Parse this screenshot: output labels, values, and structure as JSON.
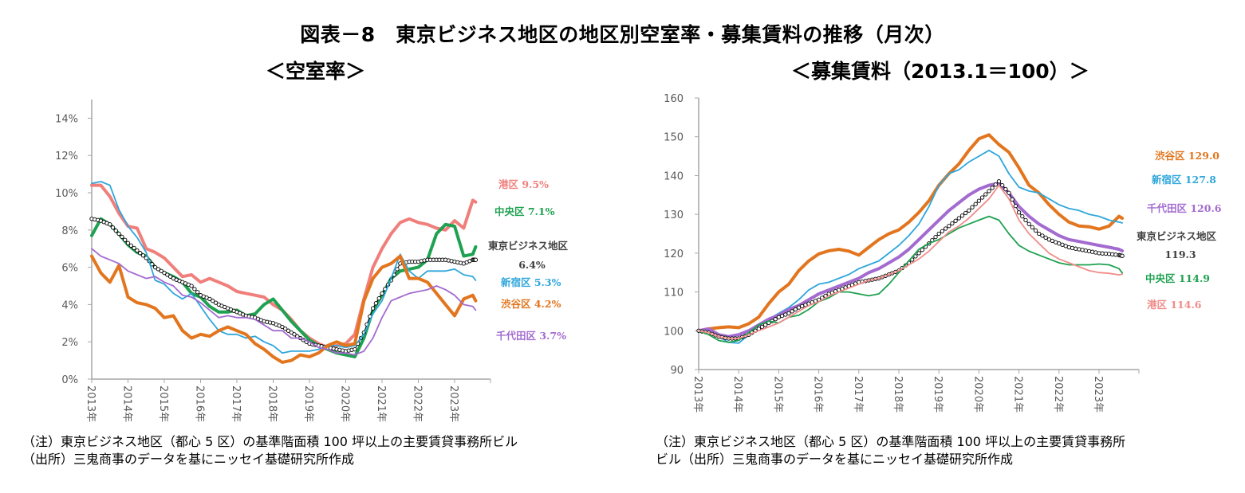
{
  "figure": {
    "title": "図表－8　東京ビジネス地区の地区別空室率・募集賃料の推移（月次）",
    "left_subtitle": "＜空室率＞",
    "right_subtitle": "＜募集賃料（2013.1＝100）＞",
    "left_note": "（注）東京ビジネス地区（都心 5 区）の基準階面積 100 坪以上の主要賃貸事務所ビル\n（出所）三鬼商事のデータを基にニッセイ基礎研究所作成",
    "right_note": "（注）東京ビジネス地区（都心 5 区）の基準階面積 100 坪以上の主要賃貸事務所\nビル（出所）三鬼商事のデータを基にニッセイ基礎研究所作成"
  },
  "chart_data": [
    {
      "type": "line",
      "title": "＜空室率＞",
      "xlabel": "",
      "ylabel": "",
      "x_unit": "year (decimal, monthly data sampled quarterly)",
      "x": [
        2013.0,
        2013.25,
        2013.5,
        2013.75,
        2014.0,
        2014.25,
        2014.5,
        2014.75,
        2015.0,
        2015.25,
        2015.5,
        2015.75,
        2016.0,
        2016.25,
        2016.5,
        2016.75,
        2017.0,
        2017.25,
        2017.5,
        2017.75,
        2018.0,
        2018.25,
        2018.5,
        2018.75,
        2019.0,
        2019.25,
        2019.5,
        2019.75,
        2020.0,
        2020.25,
        2020.5,
        2020.75,
        2021.0,
        2021.25,
        2021.5,
        2021.75,
        2022.0,
        2022.25,
        2022.5,
        2022.75,
        2023.0,
        2023.25,
        2023.5,
        2023.58
      ],
      "x_ticks": [
        "2013年",
        "2014年",
        "2015年",
        "2016年",
        "2017年",
        "2018年",
        "2019年",
        "2020年",
        "2021年",
        "2022年",
        "2023年"
      ],
      "x_range": [
        2013.0,
        2023.83
      ],
      "y_ticks": [
        "0%",
        "2%",
        "4%",
        "6%",
        "8%",
        "10%",
        "12%",
        "14%"
      ],
      "y_range": [
        0,
        15
      ],
      "grid": false,
      "legend": "end-of-line labels (right)",
      "series": [
        {
          "name": "港区",
          "end_label": "9.5%",
          "color": "#F07F7B",
          "width": "thick",
          "values": [
            10.4,
            10.4,
            9.8,
            8.9,
            8.2,
            8.1,
            7.0,
            6.8,
            6.5,
            6.0,
            5.5,
            5.6,
            5.2,
            5.4,
            5.2,
            5.0,
            4.7,
            4.6,
            4.5,
            4.4,
            4.0,
            3.7,
            3.2,
            2.6,
            2.2,
            1.9,
            1.7,
            1.8,
            1.9,
            2.4,
            4.3,
            6.0,
            7.0,
            7.8,
            8.4,
            8.6,
            8.4,
            8.3,
            8.1,
            8.0,
            8.5,
            8.1,
            9.6,
            9.5
          ]
        },
        {
          "name": "中央区",
          "end_label": "7.1%",
          "color": "#1EA150",
          "width": "thick",
          "values": [
            7.7,
            8.6,
            8.3,
            7.8,
            7.2,
            6.8,
            6.6,
            6.0,
            5.7,
            5.5,
            5.2,
            4.6,
            4.4,
            3.9,
            3.6,
            3.6,
            3.7,
            3.4,
            3.5,
            4.0,
            4.3,
            3.7,
            3.1,
            2.6,
            2.1,
            1.8,
            1.6,
            1.4,
            1.3,
            1.2,
            2.2,
            3.7,
            4.5,
            5.4,
            5.8,
            5.9,
            6.0,
            6.4,
            7.8,
            8.3,
            8.2,
            6.6,
            6.7,
            7.1
          ]
        },
        {
          "name": "東京ビジネス地区",
          "end_label": "6.4%",
          "color": "#000000",
          "width": "marker",
          "values": [
            8.6,
            8.5,
            8.3,
            7.8,
            7.3,
            6.9,
            6.5,
            6.0,
            5.7,
            5.4,
            5.2,
            5.0,
            4.5,
            4.3,
            4.0,
            3.8,
            3.6,
            3.4,
            3.3,
            3.1,
            3.0,
            2.8,
            2.5,
            2.2,
            1.9,
            1.8,
            1.7,
            1.6,
            1.5,
            1.6,
            2.5,
            3.8,
            4.6,
            5.3,
            6.2,
            6.3,
            6.3,
            6.4,
            6.4,
            6.4,
            6.3,
            6.2,
            6.4,
            6.4
          ]
        },
        {
          "name": "新宿区",
          "end_label": "5.3%",
          "color": "#2EA6DB",
          "width": "thin",
          "values": [
            10.5,
            10.6,
            10.4,
            9.1,
            8.2,
            7.6,
            6.8,
            5.3,
            5.1,
            4.6,
            4.3,
            4.6,
            3.9,
            3.2,
            2.6,
            2.4,
            2.4,
            2.2,
            2.3,
            2.0,
            1.8,
            1.4,
            1.5,
            1.5,
            1.5,
            1.6,
            1.8,
            1.8,
            1.7,
            1.8,
            2.4,
            3.5,
            4.2,
            5.4,
            6.7,
            5.8,
            5.4,
            5.8,
            5.8,
            5.8,
            5.9,
            5.6,
            5.5,
            5.3
          ]
        },
        {
          "name": "渋谷区",
          "end_label": "4.2%",
          "color": "#E2751E",
          "width": "thick",
          "values": [
            6.6,
            5.7,
            5.2,
            6.1,
            4.4,
            4.1,
            4.0,
            3.8,
            3.3,
            3.4,
            2.6,
            2.2,
            2.4,
            2.3,
            2.6,
            2.8,
            2.6,
            2.4,
            1.9,
            1.6,
            1.2,
            0.9,
            1.0,
            1.3,
            1.2,
            1.4,
            1.8,
            2.0,
            1.8,
            1.9,
            4.2,
            5.4,
            6.0,
            6.2,
            6.6,
            5.4,
            5.4,
            5.2,
            4.6,
            4.0,
            3.4,
            4.3,
            4.5,
            4.2
          ]
        },
        {
          "name": "千代田区",
          "end_label": "3.7%",
          "color": "#A36BD0",
          "width": "thin",
          "values": [
            7.0,
            6.6,
            6.4,
            6.2,
            5.8,
            5.6,
            5.4,
            5.5,
            5.2,
            5.0,
            4.5,
            4.4,
            4.1,
            3.7,
            3.3,
            3.4,
            3.3,
            3.3,
            3.2,
            2.9,
            2.6,
            2.6,
            2.2,
            2.2,
            2.0,
            1.7,
            1.6,
            1.4,
            1.4,
            1.3,
            1.5,
            2.2,
            3.3,
            4.2,
            4.4,
            4.6,
            4.7,
            4.8,
            5.0,
            4.8,
            4.5,
            4.0,
            3.9,
            3.7
          ]
        }
      ]
    },
    {
      "type": "line",
      "title": "＜募集賃料（2013.1＝100）＞",
      "xlabel": "",
      "ylabel": "",
      "x_unit": "year (decimal, monthly data sampled quarterly)",
      "x": [
        2013.0,
        2013.25,
        2013.5,
        2013.75,
        2014.0,
        2014.25,
        2014.5,
        2014.75,
        2015.0,
        2015.25,
        2015.5,
        2015.75,
        2016.0,
        2016.25,
        2016.5,
        2016.75,
        2017.0,
        2017.25,
        2017.5,
        2017.75,
        2018.0,
        2018.25,
        2018.5,
        2018.75,
        2019.0,
        2019.25,
        2019.5,
        2019.75,
        2020.0,
        2020.25,
        2020.5,
        2020.75,
        2021.0,
        2021.25,
        2021.5,
        2021.75,
        2022.0,
        2022.25,
        2022.5,
        2022.75,
        2023.0,
        2023.25,
        2023.5,
        2023.58
      ],
      "x_ticks": [
        "2013年",
        "2014年",
        "2015年",
        "2016年",
        "2017年",
        "2018年",
        "2019年",
        "2020年",
        "2021年",
        "2022年",
        "2023年"
      ],
      "x_range": [
        2013.0,
        2023.83
      ],
      "y_ticks": [
        "90",
        "100",
        "110",
        "120",
        "130",
        "140",
        "150",
        "160"
      ],
      "y_range": [
        90,
        160
      ],
      "grid": false,
      "legend": "end-of-line labels (right)",
      "series": [
        {
          "name": "渋谷区",
          "end_label": "129.0",
          "color": "#E2751E",
          "width": "thick",
          "values": [
            100.0,
            100.5,
            100.8,
            101.0,
            100.8,
            101.8,
            103.5,
            107.0,
            110.0,
            112.0,
            115.5,
            118.0,
            119.8,
            120.6,
            121.0,
            120.5,
            119.5,
            121.5,
            123.5,
            125.0,
            126.0,
            128.0,
            130.5,
            133.5,
            137.5,
            140.5,
            143.0,
            146.5,
            149.5,
            150.5,
            148.0,
            146.0,
            142.0,
            137.5,
            135.5,
            132.5,
            130.0,
            128.0,
            127.0,
            126.8,
            126.2,
            127.0,
            129.5,
            129.0
          ]
        },
        {
          "name": "新宿区",
          "end_label": "127.8",
          "color": "#2EA6DB",
          "width": "thin",
          "values": [
            100.0,
            99.5,
            98.5,
            97.0,
            96.8,
            99.0,
            101.5,
            103.0,
            104.5,
            106.0,
            108.0,
            110.5,
            112.0,
            112.5,
            113.5,
            114.5,
            116.0,
            117.0,
            118.0,
            120.0,
            122.0,
            124.5,
            127.5,
            132.0,
            137.5,
            140.5,
            141.5,
            143.5,
            145.0,
            146.5,
            145.0,
            140.5,
            137.0,
            136.0,
            135.5,
            134.0,
            132.5,
            131.5,
            131.0,
            130.0,
            129.5,
            128.5,
            128.0,
            127.8
          ]
        },
        {
          "name": "千代田区",
          "end_label": "120.6",
          "color": "#A36BD0",
          "width": "thick",
          "values": [
            100.0,
            100.5,
            99.0,
            98.5,
            99.0,
            100.0,
            101.5,
            103.0,
            104.0,
            105.5,
            106.5,
            108.0,
            109.5,
            110.5,
            111.5,
            112.5,
            113.5,
            115.0,
            116.0,
            117.5,
            119.0,
            121.0,
            123.5,
            126.0,
            128.5,
            131.0,
            133.0,
            135.0,
            136.5,
            137.5,
            138.0,
            135.5,
            132.0,
            129.5,
            127.5,
            126.0,
            124.5,
            123.5,
            123.0,
            122.5,
            122.0,
            121.5,
            121.0,
            120.6
          ]
        },
        {
          "name": "東京ビジネス地区",
          "end_label": "119.3",
          "color": "#000000",
          "width": "marker",
          "values": [
            100.0,
            99.5,
            98.5,
            98.0,
            98.0,
            99.0,
            100.5,
            102.0,
            103.5,
            104.5,
            106.0,
            107.0,
            108.0,
            109.5,
            110.5,
            111.5,
            112.5,
            113.0,
            113.5,
            114.5,
            115.5,
            117.5,
            120.0,
            122.5,
            125.0,
            127.0,
            129.0,
            131.0,
            133.5,
            136.0,
            138.5,
            135.5,
            130.5,
            127.5,
            125.0,
            123.5,
            122.5,
            121.5,
            121.0,
            120.5,
            120.0,
            119.8,
            119.5,
            119.3
          ]
        },
        {
          "name": "中央区",
          "end_label": "114.9",
          "color": "#1EA150",
          "width": "thin",
          "values": [
            100.0,
            99.0,
            97.5,
            97.0,
            97.5,
            99.5,
            101.5,
            102.5,
            102.0,
            103.5,
            104.0,
            105.5,
            107.5,
            108.5,
            110.0,
            110.0,
            109.5,
            109.0,
            109.5,
            112.0,
            115.0,
            118.0,
            121.0,
            122.5,
            123.5,
            125.0,
            126.5,
            127.5,
            128.5,
            129.5,
            128.5,
            125.0,
            122.0,
            120.5,
            119.5,
            118.5,
            117.5,
            117.0,
            117.0,
            117.0,
            117.2,
            117.0,
            116.0,
            114.9
          ]
        },
        {
          "name": "港区",
          "end_label": "114.6",
          "color": "#F08C8A",
          "width": "thin",
          "values": [
            100.0,
            99.5,
            98.5,
            98.0,
            98.0,
            99.0,
            100.0,
            101.0,
            102.0,
            103.5,
            105.0,
            106.5,
            107.5,
            109.0,
            110.0,
            111.0,
            112.0,
            113.0,
            113.5,
            114.5,
            115.5,
            117.0,
            118.5,
            120.5,
            123.0,
            125.5,
            127.0,
            129.0,
            131.5,
            134.0,
            137.5,
            134.0,
            128.5,
            125.0,
            122.5,
            120.0,
            118.5,
            117.5,
            116.5,
            115.5,
            115.0,
            114.8,
            114.4,
            114.6
          ]
        }
      ]
    }
  ]
}
